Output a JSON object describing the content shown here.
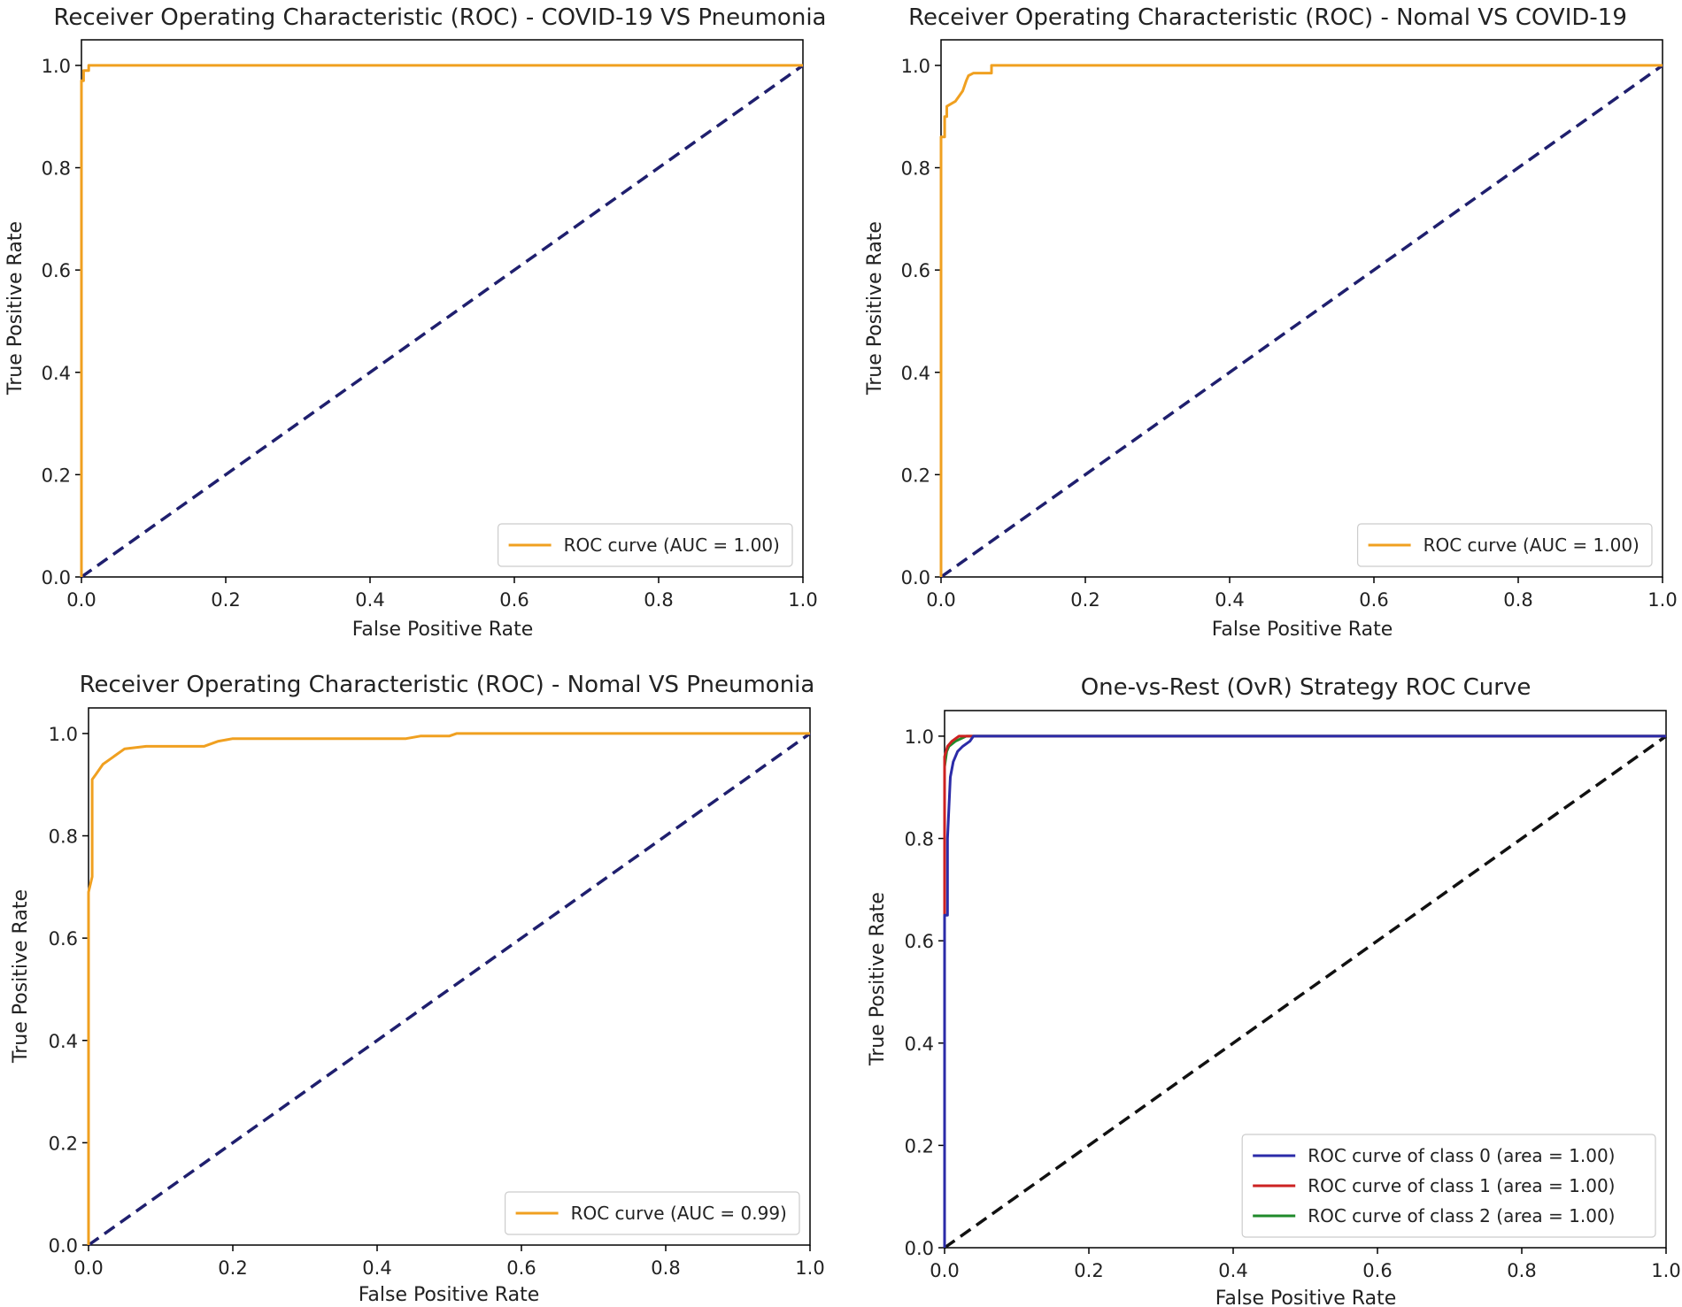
{
  "chart_data": [
    {
      "type": "line",
      "title": "Receiver Operating Characteristic (ROC) - COVID-19 VS Pneumonia",
      "xlabel": "False Positive Rate",
      "ylabel": "True Positive Rate",
      "xlim": [
        0,
        1
      ],
      "ylim": [
        0,
        1.05
      ],
      "xticks": [
        "0.0",
        "0.2",
        "0.4",
        "0.6",
        "0.8",
        "1.0"
      ],
      "yticks": [
        "0.0",
        "0.2",
        "0.4",
        "0.6",
        "0.8",
        "1.0"
      ],
      "grid": false,
      "legend_position": "bottom-right",
      "diagonal": {
        "color": "#1f1f6e",
        "style": "dashed"
      },
      "series": [
        {
          "name": "ROC curve (AUC = 1.00)",
          "color": "#f0a020",
          "points": [
            [
              0.0,
              0.0
            ],
            [
              0.0,
              0.97
            ],
            [
              0.003,
              0.97
            ],
            [
              0.003,
              0.99
            ],
            [
              0.01,
              0.99
            ],
            [
              0.01,
              1.0
            ],
            [
              1.0,
              1.0
            ]
          ]
        }
      ]
    },
    {
      "type": "line",
      "title": "Receiver Operating Characteristic (ROC) - Nomal VS COVID-19",
      "xlabel": "False Positive Rate",
      "ylabel": "True Positive Rate",
      "xlim": [
        0,
        1
      ],
      "ylim": [
        0,
        1.05
      ],
      "xticks": [
        "0.0",
        "0.2",
        "0.4",
        "0.6",
        "0.8",
        "1.0"
      ],
      "yticks": [
        "0.0",
        "0.2",
        "0.4",
        "0.6",
        "0.8",
        "1.0"
      ],
      "grid": false,
      "legend_position": "bottom-right",
      "diagonal": {
        "color": "#1f1f6e",
        "style": "dashed"
      },
      "series": [
        {
          "name": "ROC curve (AUC = 1.00)",
          "color": "#f0a020",
          "points": [
            [
              0.0,
              0.0
            ],
            [
              0.0,
              0.86
            ],
            [
              0.005,
              0.86
            ],
            [
              0.005,
              0.9
            ],
            [
              0.008,
              0.9
            ],
            [
              0.008,
              0.92
            ],
            [
              0.02,
              0.93
            ],
            [
              0.025,
              0.94
            ],
            [
              0.03,
              0.95
            ],
            [
              0.035,
              0.97
            ],
            [
              0.038,
              0.98
            ],
            [
              0.045,
              0.985
            ],
            [
              0.07,
              0.985
            ],
            [
              0.07,
              1.0
            ],
            [
              1.0,
              1.0
            ]
          ]
        }
      ]
    },
    {
      "type": "line",
      "title": "Receiver Operating Characteristic (ROC) - Nomal VS Pneumonia",
      "xlabel": "False Positive Rate",
      "ylabel": "True Positive Rate",
      "xlim": [
        0,
        1
      ],
      "ylim": [
        0,
        1.05
      ],
      "xticks": [
        "0.0",
        "0.2",
        "0.4",
        "0.6",
        "0.8",
        "1.0"
      ],
      "yticks": [
        "0.0",
        "0.2",
        "0.4",
        "0.6",
        "0.8",
        "1.0"
      ],
      "grid": false,
      "legend_position": "bottom-right",
      "diagonal": {
        "color": "#1f1f6e",
        "style": "dashed"
      },
      "series": [
        {
          "name": "ROC curve (AUC = 0.99)",
          "color": "#f0a020",
          "points": [
            [
              0.0,
              0.0
            ],
            [
              0.0,
              0.69
            ],
            [
              0.005,
              0.72
            ],
            [
              0.005,
              0.91
            ],
            [
              0.01,
              0.92
            ],
            [
              0.02,
              0.94
            ],
            [
              0.03,
              0.95
            ],
            [
              0.04,
              0.96
            ],
            [
              0.05,
              0.97
            ],
            [
              0.08,
              0.975
            ],
            [
              0.16,
              0.975
            ],
            [
              0.18,
              0.985
            ],
            [
              0.2,
              0.99
            ],
            [
              0.44,
              0.99
            ],
            [
              0.46,
              0.995
            ],
            [
              0.5,
              0.995
            ],
            [
              0.51,
              1.0
            ],
            [
              1.0,
              1.0
            ]
          ]
        }
      ]
    },
    {
      "type": "line",
      "title": "One-vs-Rest (OvR) Strategy ROC Curve",
      "xlabel": "False Positive Rate",
      "ylabel": "True Positive Rate",
      "xlim": [
        0,
        1
      ],
      "ylim": [
        0,
        1.05
      ],
      "xticks": [
        "0.0",
        "0.2",
        "0.4",
        "0.6",
        "0.8",
        "1.0"
      ],
      "yticks": [
        "0.0",
        "0.2",
        "0.4",
        "0.6",
        "0.8",
        "1.0"
      ],
      "grid": false,
      "legend_position": "bottom-right",
      "diagonal": {
        "color": "#111111",
        "style": "dashed"
      },
      "series": [
        {
          "name": "ROC curve of class 0 (area = 1.00)",
          "color": "#2b2ba8",
          "points": [
            [
              0.0,
              0.0
            ],
            [
              0.0,
              0.65
            ],
            [
              0.004,
              0.65
            ],
            [
              0.004,
              0.8
            ],
            [
              0.006,
              0.86
            ],
            [
              0.008,
              0.92
            ],
            [
              0.012,
              0.95
            ],
            [
              0.018,
              0.97
            ],
            [
              0.025,
              0.98
            ],
            [
              0.035,
              0.99
            ],
            [
              0.04,
              1.0
            ],
            [
              1.0,
              1.0
            ]
          ]
        },
        {
          "name": "ROC curve of class 1 (area = 1.00)",
          "color": "#cc2222",
          "points": [
            [
              0.0,
              0.0
            ],
            [
              0.0,
              0.96
            ],
            [
              0.004,
              0.98
            ],
            [
              0.01,
              0.99
            ],
            [
              0.02,
              1.0
            ],
            [
              1.0,
              1.0
            ]
          ]
        },
        {
          "name": "ROC curve of class 2 (area = 1.00)",
          "color": "#1f8a2a",
          "points": [
            [
              0.0,
              0.0
            ],
            [
              0.0,
              0.94
            ],
            [
              0.003,
              0.97
            ],
            [
              0.006,
              0.98
            ],
            [
              0.015,
              0.99
            ],
            [
              0.03,
              1.0
            ],
            [
              1.0,
              1.0
            ]
          ]
        }
      ]
    }
  ]
}
